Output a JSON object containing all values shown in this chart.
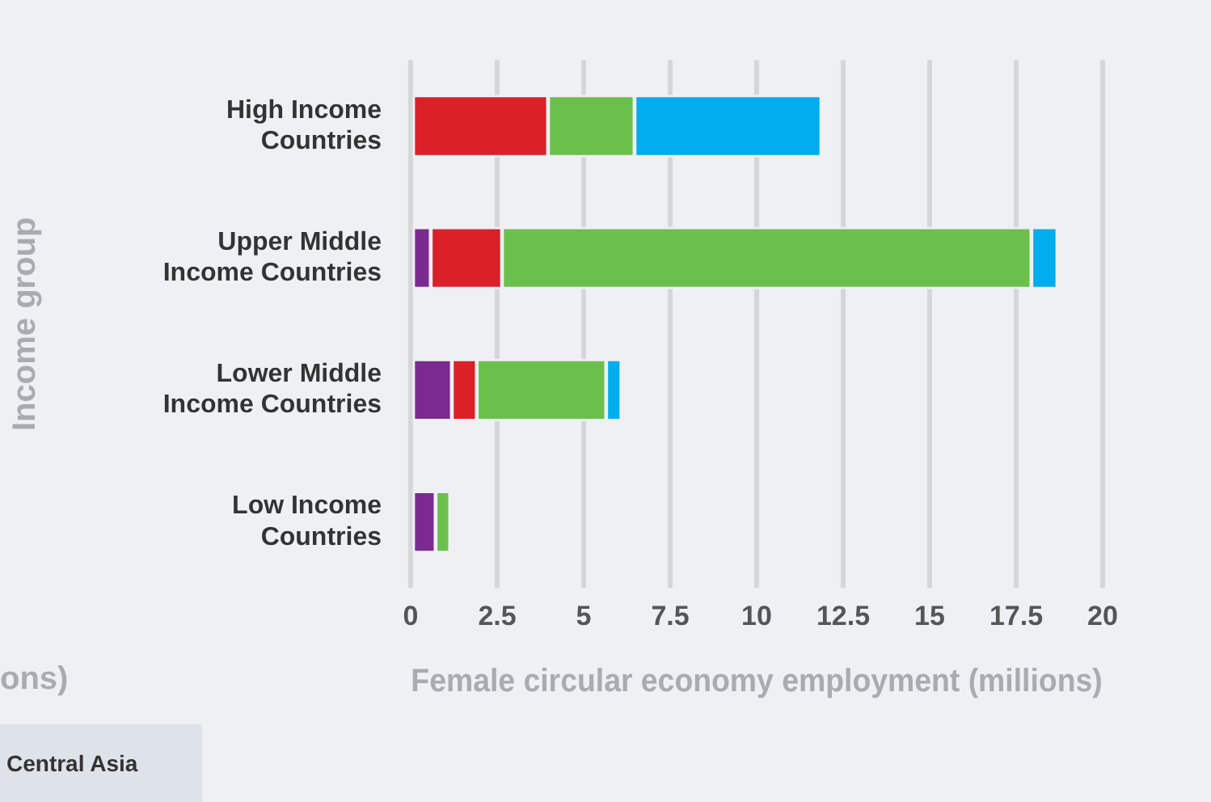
{
  "chart_data": {
    "type": "bar",
    "orientation": "horizontal",
    "stacked": true,
    "xlabel": "Female circular economy employment (millions)",
    "ylabel": "Income group",
    "categories": [
      "High Income Countries",
      "Upper Middle Income Countries",
      "Lower Middle Income Countries",
      "Low Income Countries"
    ],
    "series": [
      {
        "color": "#7b2a90",
        "values": [
          null,
          0.58,
          1.19,
          0.72
        ]
      },
      {
        "color": "#dc2027",
        "values": [
          3.97,
          2.06,
          0.72,
          null
        ]
      },
      {
        "color": "#6bc04b",
        "values": [
          2.5,
          15.3,
          3.74,
          0.42
        ]
      },
      {
        "color": "#00aeef",
        "values": [
          5.4,
          0.75,
          0.44,
          null
        ]
      }
    ],
    "xlim": [
      0,
      20
    ],
    "xticks": [
      0,
      2.5,
      5,
      7.5,
      10,
      12.5,
      15,
      17.5,
      20
    ],
    "grid": "x",
    "legend": false,
    "annotations": [
      "ons)",
      "Central Asia"
    ]
  }
}
